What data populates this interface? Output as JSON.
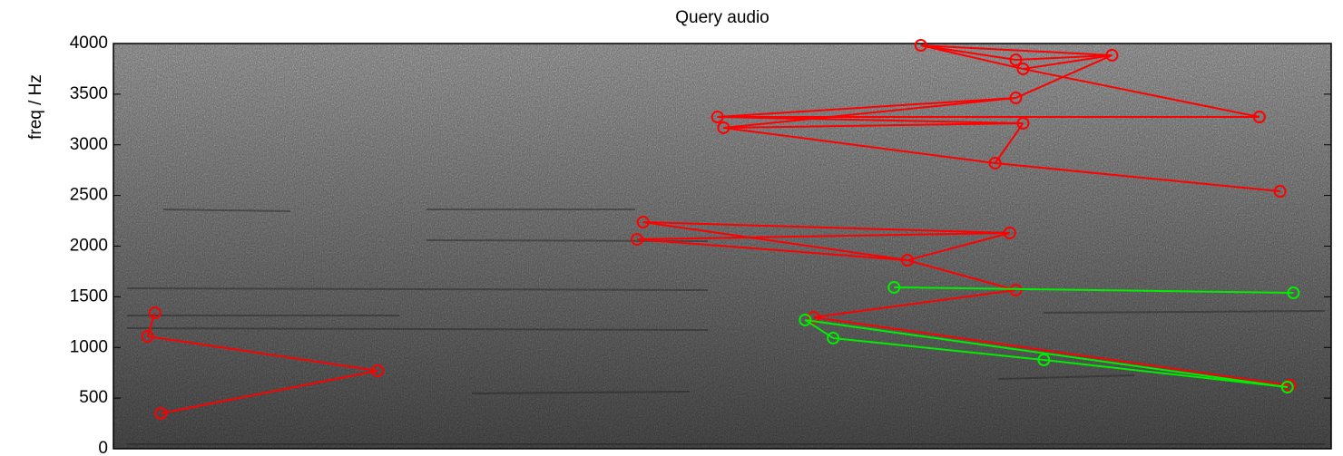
{
  "chart_data": {
    "type": "scatter",
    "title": "Query audio",
    "y_label": "freq / Hz",
    "xlim": [
      0,
      100
    ],
    "ylim": [
      0,
      4000
    ],
    "yticks": [
      0,
      500,
      1000,
      1500,
      2000,
      2500,
      3000,
      3500,
      4000
    ],
    "series": [
      {
        "color": "#ff0000",
        "x": [
          66.3,
          74.1,
          82.0,
          74.7,
          74.1,
          49.6,
          50.1,
          74.7,
          94.1,
          72.4,
          95.8,
          43.5,
          43.0,
          73.6,
          65.2,
          74.1,
          57.5,
          96.6,
          3.4,
          2.8,
          21.7,
          3.9
        ],
        "values": [
          3982,
          3839,
          3884,
          3749,
          3463,
          3275,
          3168,
          3213,
          3275,
          2819,
          2541,
          2237,
          2067,
          2130,
          1861,
          1566,
          1298,
          626,
          1342,
          1110,
          770,
          349
        ],
        "links": [
          [
            0,
            2
          ],
          [
            0,
            1
          ],
          [
            0,
            3
          ],
          [
            1,
            2
          ],
          [
            2,
            3
          ],
          [
            2,
            4
          ],
          [
            3,
            8
          ],
          [
            4,
            5
          ],
          [
            4,
            6
          ],
          [
            5,
            7
          ],
          [
            6,
            7
          ],
          [
            5,
            8
          ],
          [
            6,
            9
          ],
          [
            7,
            9
          ],
          [
            9,
            10
          ],
          [
            11,
            13
          ],
          [
            12,
            13
          ],
          [
            11,
            14
          ],
          [
            12,
            14
          ],
          [
            14,
            13
          ],
          [
            14,
            15
          ],
          [
            15,
            16
          ],
          [
            16,
            17
          ],
          [
            18,
            19
          ],
          [
            19,
            20
          ],
          [
            20,
            21
          ]
        ]
      },
      {
        "color": "#00ee00",
        "x": [
          64.1,
          96.9,
          56.8,
          59.1,
          76.4,
          96.4
        ],
        "values": [
          1593,
          1539,
          1271,
          1092,
          877,
          608
        ],
        "links": [
          [
            0,
            1
          ],
          [
            2,
            3
          ],
          [
            2,
            5
          ],
          [
            3,
            4
          ],
          [
            4,
            5
          ]
        ]
      }
    ]
  }
}
